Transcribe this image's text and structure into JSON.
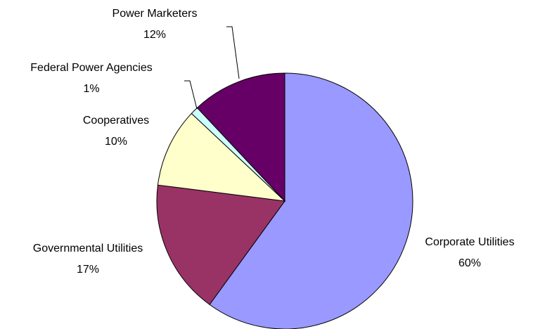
{
  "chart_data": {
    "type": "pie",
    "categories": [
      "Corporate Utilities",
      "Governmental Utilities",
      "Cooperatives",
      "Federal Power Agencies",
      "Power Marketers"
    ],
    "values": [
      60,
      17,
      10,
      1,
      12
    ],
    "value_labels": [
      "60%",
      "17%",
      "10%",
      "1%",
      "12%"
    ],
    "colors": [
      "#9999ff",
      "#993366",
      "#ffffcc",
      "#ccffff",
      "#660066"
    ]
  }
}
